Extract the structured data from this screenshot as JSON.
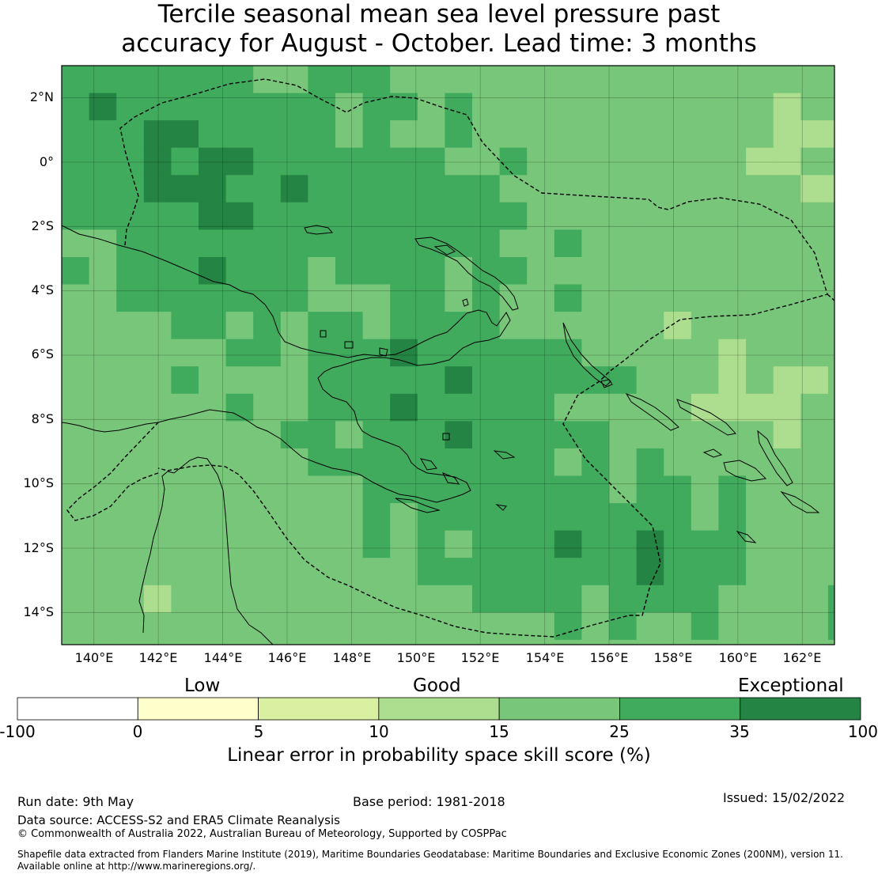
{
  "title": {
    "line1": "Tercile seasonal mean sea level pressure past",
    "line2": "accuracy for August - October. Lead time: 3 months"
  },
  "map": {
    "lat_labels": [
      "2°N",
      "0°",
      "2°S",
      "4°S",
      "6°S",
      "8°S",
      "10°S",
      "12°S",
      "14°S"
    ],
    "lon_labels": [
      "140°E",
      "142°E",
      "144°E",
      "146°E",
      "148°E",
      "150°E",
      "152°E",
      "154°E",
      "156°E",
      "158°E",
      "160°E",
      "162°E"
    ],
    "extent": {
      "lon": [
        139,
        163
      ],
      "lat": [
        -15,
        3
      ]
    },
    "cell_deg": 0.85,
    "grid_lines": true,
    "layers": [
      "skill-score-raster",
      "coastlines",
      "eez-boundaries"
    ]
  },
  "colorbar": {
    "categories": [
      "Low",
      "Good",
      "Exceptional"
    ],
    "tick_labels": [
      "-100",
      "0",
      "5",
      "10",
      "15",
      "25",
      "35",
      "100"
    ],
    "bins": [
      {
        "from": -100,
        "to": 0,
        "color": "#ffffff"
      },
      {
        "from": 0,
        "to": 5,
        "color": "#ffffcc"
      },
      {
        "from": 5,
        "to": 10,
        "color": "#d9f0a3"
      },
      {
        "from": 10,
        "to": 15,
        "color": "#addd8e"
      },
      {
        "from": 15,
        "to": 25,
        "color": "#78c679"
      },
      {
        "from": 25,
        "to": 35,
        "color": "#41ab5d"
      },
      {
        "from": 35,
        "to": 100,
        "color": "#238443"
      }
    ],
    "label": "Linear error in probability space skill score (%)"
  },
  "footer": {
    "run_date": "Run date: 9th May",
    "base_period": "Base period: 1981-2018",
    "issued": "Issued: 15/02/2022",
    "data_source": "Data source: ACCESS-S2 and ERA5 Climate Reanalysis",
    "copyright": "© Commonwealth of Australia 2022, Australian Bureau of Meteorology, Supported by COSPPac",
    "shapefile_line1": "Shapefile data extracted from Flanders Marine Institute (2019), Maritime Boundaries Geodatabase: Maritime Boundaries and Exclusive Economic Zones (200NM), version 11.",
    "shapefile_line2": "Available online at http://www.marineregions.org/."
  }
}
